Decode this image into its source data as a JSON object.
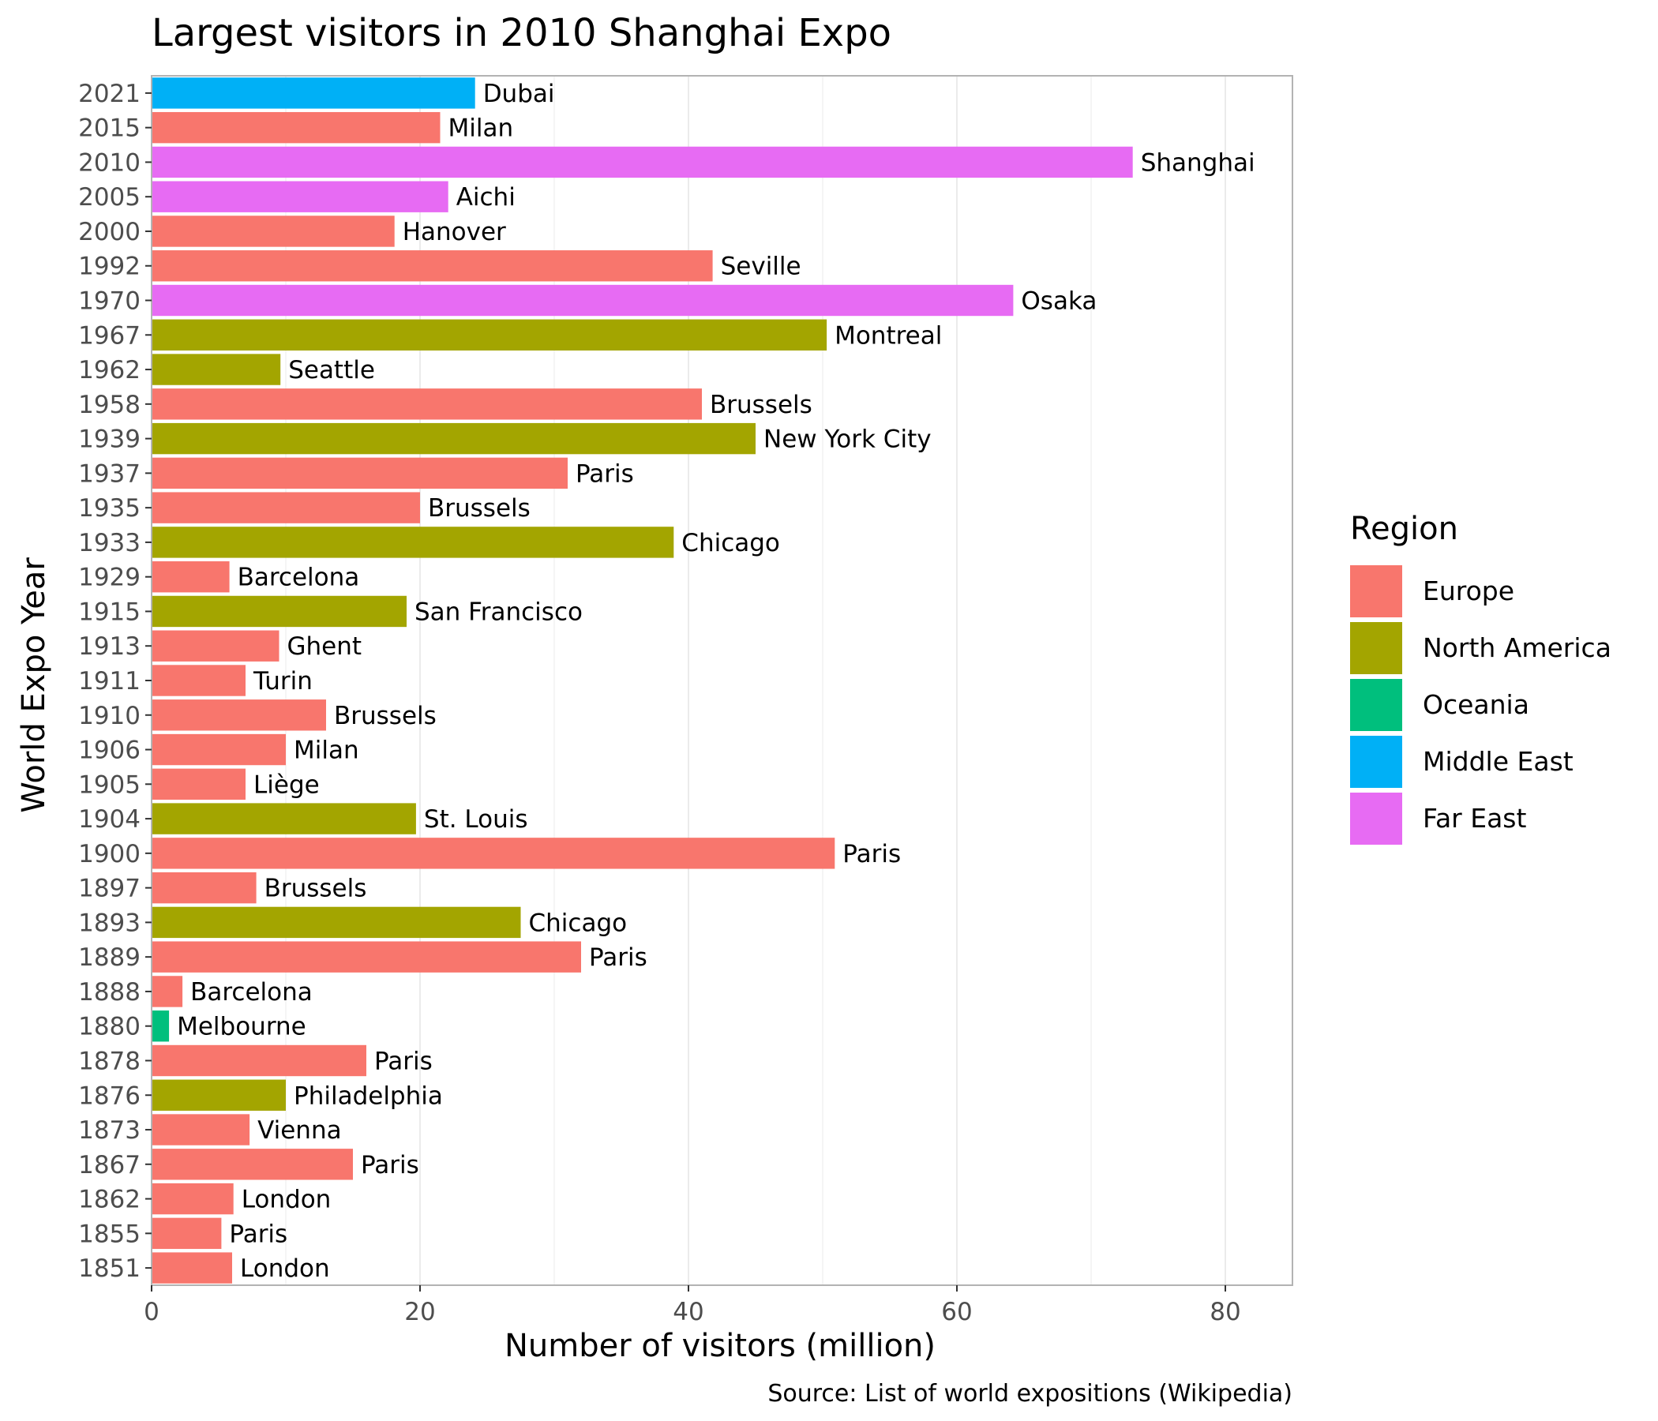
{
  "chart_data": {
    "type": "bar",
    "orientation": "horizontal",
    "title": "Largest visitors in 2010 Shanghai Expo",
    "xlabel": "Number of visitors (million)",
    "ylabel": "World Expo Year",
    "caption": "Source: List of world expositions (Wikipedia)",
    "xlim": [
      0,
      85
    ],
    "xticks": [
      0,
      20,
      40,
      60,
      80
    ],
    "grid": true,
    "legend": {
      "title": "Region",
      "position": "right",
      "entries": [
        {
          "name": "Europe",
          "color": "#F8766D"
        },
        {
          "name": "North America",
          "color": "#A3A500"
        },
        {
          "name": "Oceania",
          "color": "#00BF7D"
        },
        {
          "name": "Middle East",
          "color": "#00B0F6"
        },
        {
          "name": "Far East",
          "color": "#E76BF3"
        }
      ]
    },
    "bars": [
      {
        "year": "2021",
        "city": "Dubai",
        "visitors": 24.1,
        "region": "Middle East"
      },
      {
        "year": "2015",
        "city": "Milan",
        "visitors": 21.5,
        "region": "Europe"
      },
      {
        "year": "2010",
        "city": "Shanghai",
        "visitors": 73.1,
        "region": "Far East"
      },
      {
        "year": "2005",
        "city": "Aichi",
        "visitors": 22.1,
        "region": "Far East"
      },
      {
        "year": "2000",
        "city": "Hanover",
        "visitors": 18.1,
        "region": "Europe"
      },
      {
        "year": "1992",
        "city": "Seville",
        "visitors": 41.8,
        "region": "Europe"
      },
      {
        "year": "1970",
        "city": "Osaka",
        "visitors": 64.2,
        "region": "Far East"
      },
      {
        "year": "1967",
        "city": "Montreal",
        "visitors": 50.3,
        "region": "North America"
      },
      {
        "year": "1962",
        "city": "Seattle",
        "visitors": 9.6,
        "region": "North America"
      },
      {
        "year": "1958",
        "city": "Brussels",
        "visitors": 41.0,
        "region": "Europe"
      },
      {
        "year": "1939",
        "city": "New York City",
        "visitors": 45.0,
        "region": "North America"
      },
      {
        "year": "1937",
        "city": "Paris",
        "visitors": 31.0,
        "region": "Europe"
      },
      {
        "year": "1935",
        "city": "Brussels",
        "visitors": 20.0,
        "region": "Europe"
      },
      {
        "year": "1933",
        "city": "Chicago",
        "visitors": 38.9,
        "region": "North America"
      },
      {
        "year": "1929",
        "city": "Barcelona",
        "visitors": 5.8,
        "region": "Europe"
      },
      {
        "year": "1915",
        "city": "San Francisco",
        "visitors": 19.0,
        "region": "North America"
      },
      {
        "year": "1913",
        "city": "Ghent",
        "visitors": 9.5,
        "region": "Europe"
      },
      {
        "year": "1911",
        "city": "Turin",
        "visitors": 7.0,
        "region": "Europe"
      },
      {
        "year": "1910",
        "city": "Brussels",
        "visitors": 13.0,
        "region": "Europe"
      },
      {
        "year": "1906",
        "city": "Milan",
        "visitors": 10.0,
        "region": "Europe"
      },
      {
        "year": "1905",
        "city": "Liège",
        "visitors": 7.0,
        "region": "Europe"
      },
      {
        "year": "1904",
        "city": "St. Louis",
        "visitors": 19.7,
        "region": "North America"
      },
      {
        "year": "1900",
        "city": "Paris",
        "visitors": 50.9,
        "region": "Europe"
      },
      {
        "year": "1897",
        "city": "Brussels",
        "visitors": 7.8,
        "region": "Europe"
      },
      {
        "year": "1893",
        "city": "Chicago",
        "visitors": 27.5,
        "region": "North America"
      },
      {
        "year": "1889",
        "city": "Paris",
        "visitors": 32.0,
        "region": "Europe"
      },
      {
        "year": "1888",
        "city": "Barcelona",
        "visitors": 2.3,
        "region": "Europe"
      },
      {
        "year": "1880",
        "city": "Melbourne",
        "visitors": 1.3,
        "region": "Oceania"
      },
      {
        "year": "1878",
        "city": "Paris",
        "visitors": 16.0,
        "region": "Europe"
      },
      {
        "year": "1876",
        "city": "Philadelphia",
        "visitors": 10.0,
        "region": "North America"
      },
      {
        "year": "1873",
        "city": "Vienna",
        "visitors": 7.3,
        "region": "Europe"
      },
      {
        "year": "1867",
        "city": "Paris",
        "visitors": 15.0,
        "region": "Europe"
      },
      {
        "year": "1862",
        "city": "London",
        "visitors": 6.1,
        "region": "Europe"
      },
      {
        "year": "1855",
        "city": "Paris",
        "visitors": 5.2,
        "region": "Europe"
      },
      {
        "year": "1851",
        "city": "London",
        "visitors": 6.0,
        "region": "Europe"
      }
    ]
  }
}
